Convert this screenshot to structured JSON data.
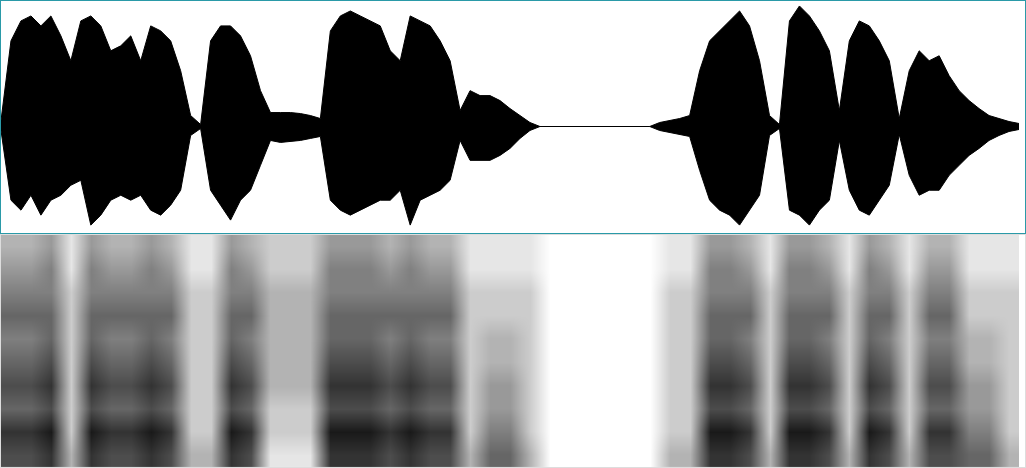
{
  "chart_data": [
    {
      "type": "area",
      "color": "#000000",
      "grid": false,
      "tick_labels": false,
      "xlim": [
        0,
        1026
      ],
      "ylim": [
        -107,
        126
      ],
      "x": [
        0,
        10,
        20,
        30,
        40,
        50,
        60,
        70,
        80,
        90,
        100,
        110,
        120,
        130,
        140,
        150,
        160,
        170,
        180,
        190,
        200,
        210,
        220,
        230,
        240,
        250,
        260,
        270,
        280,
        290,
        300,
        310,
        320,
        330,
        340,
        350,
        360,
        370,
        380,
        390,
        400,
        410,
        420,
        430,
        440,
        450,
        460,
        470,
        480,
        490,
        500,
        510,
        520,
        530,
        540,
        550,
        560,
        570,
        580,
        590,
        600,
        610,
        620,
        630,
        640,
        650,
        660,
        670,
        680,
        690,
        700,
        710,
        720,
        730,
        740,
        750,
        760,
        770,
        780,
        790,
        800,
        810,
        820,
        830,
        840,
        850,
        860,
        870,
        880,
        890,
        900,
        910,
        920,
        930,
        940,
        950,
        960,
        970,
        980,
        990,
        1000,
        1010,
        1020
      ],
      "upper": [
        6,
        86,
        106,
        111,
        101,
        111,
        91,
        66,
        106,
        111,
        101,
        76,
        81,
        91,
        66,
        101,
        96,
        86,
        56,
        11,
        2,
        86,
        101,
        101,
        91,
        71,
        36,
        14,
        14,
        14,
        13,
        11,
        8,
        96,
        111,
        116,
        111,
        106,
        101,
        76,
        66,
        111,
        106,
        101,
        86,
        66,
        16,
        36,
        31,
        31,
        26,
        18,
        11,
        4,
        0,
        0,
        0,
        0,
        0,
        0,
        0,
        0,
        0,
        0,
        0,
        0,
        4,
        6,
        8,
        11,
        56,
        86,
        96,
        106,
        116,
        101,
        66,
        11,
        2,
        106,
        121,
        111,
        96,
        76,
        16,
        86,
        106,
        101,
        86,
        66,
        8,
        56,
        76,
        66,
        71,
        51,
        36,
        26,
        18,
        11,
        8,
        5,
        3
      ],
      "lower": [
        -4,
        -74,
        -84,
        -69,
        -89,
        -74,
        -69,
        -59,
        -54,
        -99,
        -89,
        -74,
        -69,
        -74,
        -69,
        -84,
        -89,
        -79,
        -64,
        -9,
        -2,
        -64,
        -79,
        -94,
        -74,
        -64,
        -39,
        -14,
        -16,
        -15,
        -14,
        -12,
        -10,
        -74,
        -84,
        -89,
        -84,
        -79,
        -74,
        -74,
        -64,
        -99,
        -74,
        -69,
        -64,
        -54,
        -14,
        -34,
        -34,
        -34,
        -29,
        -22,
        -12,
        -4,
        0,
        0,
        0,
        0,
        0,
        0,
        0,
        0,
        0,
        0,
        0,
        0,
        -4,
        -6,
        -8,
        -10,
        -44,
        -74,
        -84,
        -89,
        -99,
        -84,
        -69,
        -9,
        -2,
        -84,
        -89,
        -99,
        -84,
        -74,
        -14,
        -64,
        -84,
        -89,
        -74,
        -59,
        -8,
        -49,
        -69,
        -64,
        -64,
        -49,
        -39,
        -29,
        -22,
        -14,
        -9,
        -5,
        -3
      ]
    },
    {
      "type": "heatmap",
      "colors": [
        "#ffffff",
        "#000000"
      ],
      "grid": false,
      "tick_labels": false,
      "xlim": [
        0,
        1026
      ],
      "ylim": [
        0,
        10
      ],
      "zlim": [
        0,
        10
      ],
      "x": [
        10,
        30,
        50,
        70,
        90,
        110,
        130,
        150,
        170,
        190,
        210,
        230,
        250,
        270,
        290,
        310,
        330,
        350,
        370,
        390,
        410,
        430,
        450,
        470,
        490,
        510,
        530,
        550,
        570,
        590,
        610,
        630,
        650,
        670,
        690,
        710,
        730,
        750,
        770,
        790,
        810,
        830,
        850,
        870,
        890,
        910,
        930,
        950,
        970,
        990,
        1010
      ],
      "y": [
        0.5,
        1.5,
        2.5,
        3.5,
        4.5,
        5.5,
        6.5,
        7.5,
        8.5,
        9.5
      ],
      "cells": [
        [
          7,
          7,
          8,
          3,
          8,
          7,
          7,
          8,
          7,
          3,
          3,
          8,
          7,
          1,
          1,
          1,
          8,
          8,
          8,
          7,
          8,
          7,
          7,
          3,
          6,
          6,
          3,
          0,
          0,
          0,
          0,
          0,
          0,
          3,
          3,
          8,
          8,
          7,
          3,
          8,
          8,
          7,
          3,
          8,
          7,
          3,
          7,
          7,
          6,
          6,
          3
        ],
        [
          8,
          8,
          9,
          2,
          9,
          8,
          8,
          9,
          8,
          2,
          2,
          9,
          8,
          2,
          2,
          2,
          9,
          9,
          9,
          8,
          9,
          8,
          8,
          2,
          5,
          5,
          2,
          0,
          0,
          0,
          0,
          0,
          0,
          2,
          2,
          9,
          9,
          8,
          2,
          9,
          9,
          8,
          2,
          9,
          8,
          2,
          8,
          8,
          5,
          5,
          2
        ],
        [
          6,
          6,
          7,
          2,
          7,
          6,
          6,
          7,
          6,
          2,
          2,
          7,
          6,
          2,
          2,
          2,
          7,
          7,
          7,
          6,
          7,
          6,
          6,
          2,
          4,
          4,
          2,
          0,
          0,
          0,
          0,
          0,
          0,
          2,
          2,
          7,
          7,
          6,
          2,
          7,
          7,
          6,
          2,
          7,
          6,
          2,
          6,
          6,
          4,
          4,
          2
        ],
        [
          7,
          7,
          8,
          2,
          8,
          7,
          7,
          8,
          7,
          2,
          2,
          8,
          7,
          3,
          3,
          3,
          8,
          8,
          8,
          7,
          8,
          7,
          7,
          2,
          4,
          4,
          2,
          0,
          0,
          0,
          0,
          0,
          0,
          2,
          2,
          8,
          8,
          7,
          2,
          8,
          8,
          7,
          2,
          8,
          7,
          2,
          7,
          7,
          4,
          4,
          2
        ],
        [
          6,
          6,
          7,
          2,
          7,
          6,
          6,
          7,
          6,
          2,
          2,
          7,
          6,
          3,
          3,
          3,
          7,
          7,
          7,
          6,
          7,
          6,
          6,
          2,
          3,
          3,
          2,
          0,
          0,
          0,
          0,
          0,
          0,
          2,
          2,
          7,
          7,
          6,
          2,
          7,
          7,
          6,
          2,
          7,
          6,
          2,
          6,
          6,
          3,
          3,
          2
        ],
        [
          5,
          5,
          6,
          2,
          6,
          5,
          5,
          6,
          5,
          2,
          2,
          6,
          5,
          3,
          3,
          3,
          6,
          6,
          6,
          5,
          6,
          5,
          5,
          2,
          3,
          3,
          2,
          0,
          0,
          0,
          0,
          0,
          0,
          2,
          2,
          6,
          6,
          5,
          2,
          6,
          6,
          5,
          2,
          6,
          5,
          2,
          5,
          5,
          3,
          3,
          2
        ],
        [
          6,
          6,
          6,
          2,
          6,
          6,
          6,
          6,
          6,
          2,
          2,
          6,
          6,
          3,
          3,
          3,
          6,
          6,
          6,
          6,
          6,
          6,
          6,
          2,
          2,
          2,
          2,
          0,
          0,
          0,
          0,
          0,
          0,
          2,
          2,
          6,
          6,
          6,
          2,
          6,
          6,
          6,
          2,
          6,
          6,
          2,
          6,
          6,
          2,
          2,
          2
        ],
        [
          5,
          5,
          5,
          2,
          5,
          5,
          5,
          5,
          5,
          2,
          2,
          5,
          5,
          3,
          3,
          3,
          5,
          5,
          5,
          5,
          5,
          5,
          5,
          2,
          2,
          2,
          2,
          0,
          0,
          0,
          0,
          0,
          0,
          2,
          2,
          5,
          5,
          5,
          2,
          5,
          5,
          5,
          2,
          5,
          5,
          2,
          5,
          5,
          2,
          2,
          2
        ],
        [
          4,
          4,
          5,
          1,
          5,
          4,
          4,
          5,
          4,
          1,
          1,
          5,
          4,
          2,
          2,
          2,
          5,
          5,
          5,
          4,
          5,
          4,
          4,
          1,
          1,
          1,
          1,
          0,
          0,
          0,
          0,
          0,
          0,
          1,
          1,
          5,
          5,
          4,
          1,
          5,
          5,
          4,
          1,
          5,
          4,
          1,
          4,
          4,
          1,
          1,
          1
        ],
        [
          3,
          3,
          4,
          1,
          4,
          3,
          3,
          4,
          3,
          1,
          1,
          4,
          3,
          2,
          2,
          2,
          4,
          4,
          4,
          3,
          4,
          3,
          3,
          1,
          1,
          1,
          1,
          0,
          0,
          0,
          0,
          0,
          0,
          1,
          1,
          4,
          4,
          3,
          1,
          4,
          4,
          3,
          1,
          4,
          3,
          1,
          3,
          3,
          1,
          1,
          1
        ]
      ]
    }
  ]
}
